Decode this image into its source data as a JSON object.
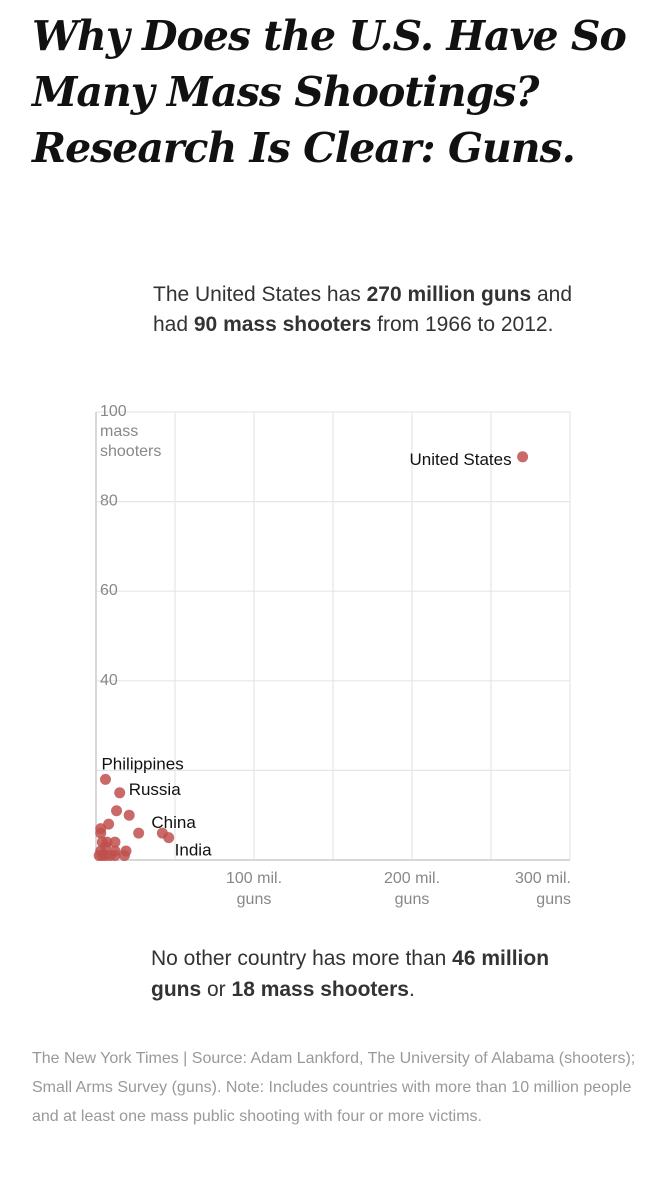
{
  "headline": {
    "line1": "Why Does the U.S. Have So",
    "line2": "Many Mass Shootings?",
    "line3": "Research Is Clear: Guns."
  },
  "intro": {
    "t1": "The United States has ",
    "b1": "270 million guns",
    "t2": " and had ",
    "b2": "90 mass shooters",
    "t3": " from 1966 to 2012."
  },
  "closing": {
    "t1": "No other country has more than ",
    "b1": "46 million guns",
    "t2": " or ",
    "b2": "18 mass shooters",
    "t3": "."
  },
  "source": {
    "text": "The New York Times  |  Source: Adam Lankford, The University of Alabama (shooters); Small Arms Survey (guns). Note: Includes countries with more than 10 million people and at least one mass public shooting with four or more victims."
  },
  "chart_data": {
    "type": "scatter",
    "xlim": [
      0,
      300
    ],
    "ylim": [
      0,
      100
    ],
    "grid": true,
    "point_color": "#c0504d",
    "y_ticks": [
      {
        "value": 100,
        "lines": [
          "100",
          "mass",
          "shooters"
        ]
      },
      {
        "value": 80,
        "lines": [
          "80"
        ]
      },
      {
        "value": 60,
        "lines": [
          "60"
        ]
      },
      {
        "value": 40,
        "lines": [
          "40"
        ]
      },
      {
        "value": 20,
        "lines": [
          ""
        ]
      }
    ],
    "x_ticks": [
      {
        "value": 100,
        "lines": [
          "100 mil.",
          "guns"
        ]
      },
      {
        "value": 200,
        "lines": [
          "200 mil.",
          "guns"
        ]
      },
      {
        "value": 300,
        "lines": [
          "300 mil.",
          "guns"
        ]
      }
    ],
    "points": [
      {
        "label": "United States",
        "x": 270,
        "y": 90
      },
      {
        "label": "Philippines",
        "x": 6,
        "y": 18
      },
      {
        "label": "Russia",
        "x": 15,
        "y": 15
      },
      {
        "label": "China",
        "x": 42,
        "y": 6
      },
      {
        "label": "India",
        "x": 46,
        "y": 5
      },
      {
        "label": "",
        "x": 13,
        "y": 11
      },
      {
        "label": "",
        "x": 21,
        "y": 10
      },
      {
        "label": "",
        "x": 8,
        "y": 8
      },
      {
        "label": "",
        "x": 27,
        "y": 6
      },
      {
        "label": "",
        "x": 3,
        "y": 7
      },
      {
        "label": "",
        "x": 3,
        "y": 6
      },
      {
        "label": "",
        "x": 12,
        "y": 4
      },
      {
        "label": "",
        "x": 4,
        "y": 4
      },
      {
        "label": "",
        "x": 7,
        "y": 4
      },
      {
        "label": "",
        "x": 6,
        "y": 3
      },
      {
        "label": "",
        "x": 12,
        "y": 2
      },
      {
        "label": "",
        "x": 19,
        "y": 2
      },
      {
        "label": "",
        "x": 3,
        "y": 2
      },
      {
        "label": "",
        "x": 4,
        "y": 1
      },
      {
        "label": "",
        "x": 9,
        "y": 1
      },
      {
        "label": "",
        "x": 12,
        "y": 1
      },
      {
        "label": "",
        "x": 18,
        "y": 1
      },
      {
        "label": "",
        "x": 2,
        "y": 1
      },
      {
        "label": "",
        "x": 6,
        "y": 1
      }
    ]
  }
}
